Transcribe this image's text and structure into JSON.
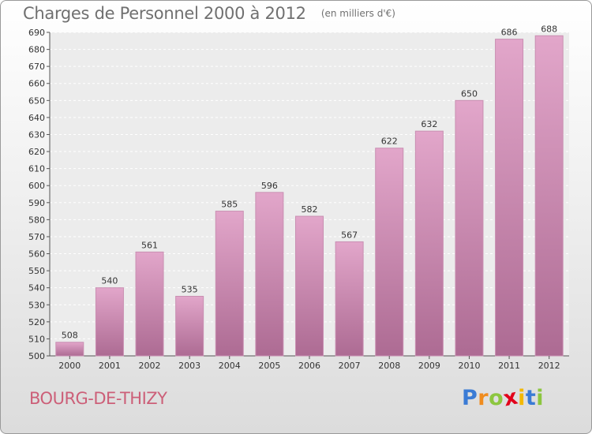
{
  "title": "Charges de Personnel 2000 à 2012",
  "subtitle": "(en milliers d'€)",
  "commune": "BOURG-DE-THIZY",
  "logo": {
    "letters": [
      "P",
      "r",
      "o",
      "x",
      "i",
      "t",
      "i"
    ],
    "colors": [
      "#3a7bd5",
      "#f08c1e",
      "#8cc63f",
      "#e2001a",
      "#f3b800",
      "#3a7bd5",
      "#8cc63f"
    ]
  },
  "colors": {
    "bar_top": "#e2a6ca",
    "bar_bottom": "#ad6b93",
    "commune": "#cc5f78"
  },
  "chart_data": {
    "type": "bar",
    "categories": [
      "2000",
      "2001",
      "2002",
      "2003",
      "2004",
      "2005",
      "2006",
      "2007",
      "2008",
      "2009",
      "2010",
      "2011",
      "2012"
    ],
    "values": [
      508,
      540,
      561,
      535,
      585,
      596,
      582,
      567,
      622,
      632,
      650,
      686,
      688
    ],
    "ylim": [
      500,
      690
    ],
    "yticks": [
      500,
      510,
      520,
      530,
      540,
      550,
      560,
      570,
      580,
      590,
      600,
      610,
      620,
      630,
      640,
      650,
      660,
      670,
      680,
      690
    ],
    "grid": true,
    "data_labels": true
  }
}
